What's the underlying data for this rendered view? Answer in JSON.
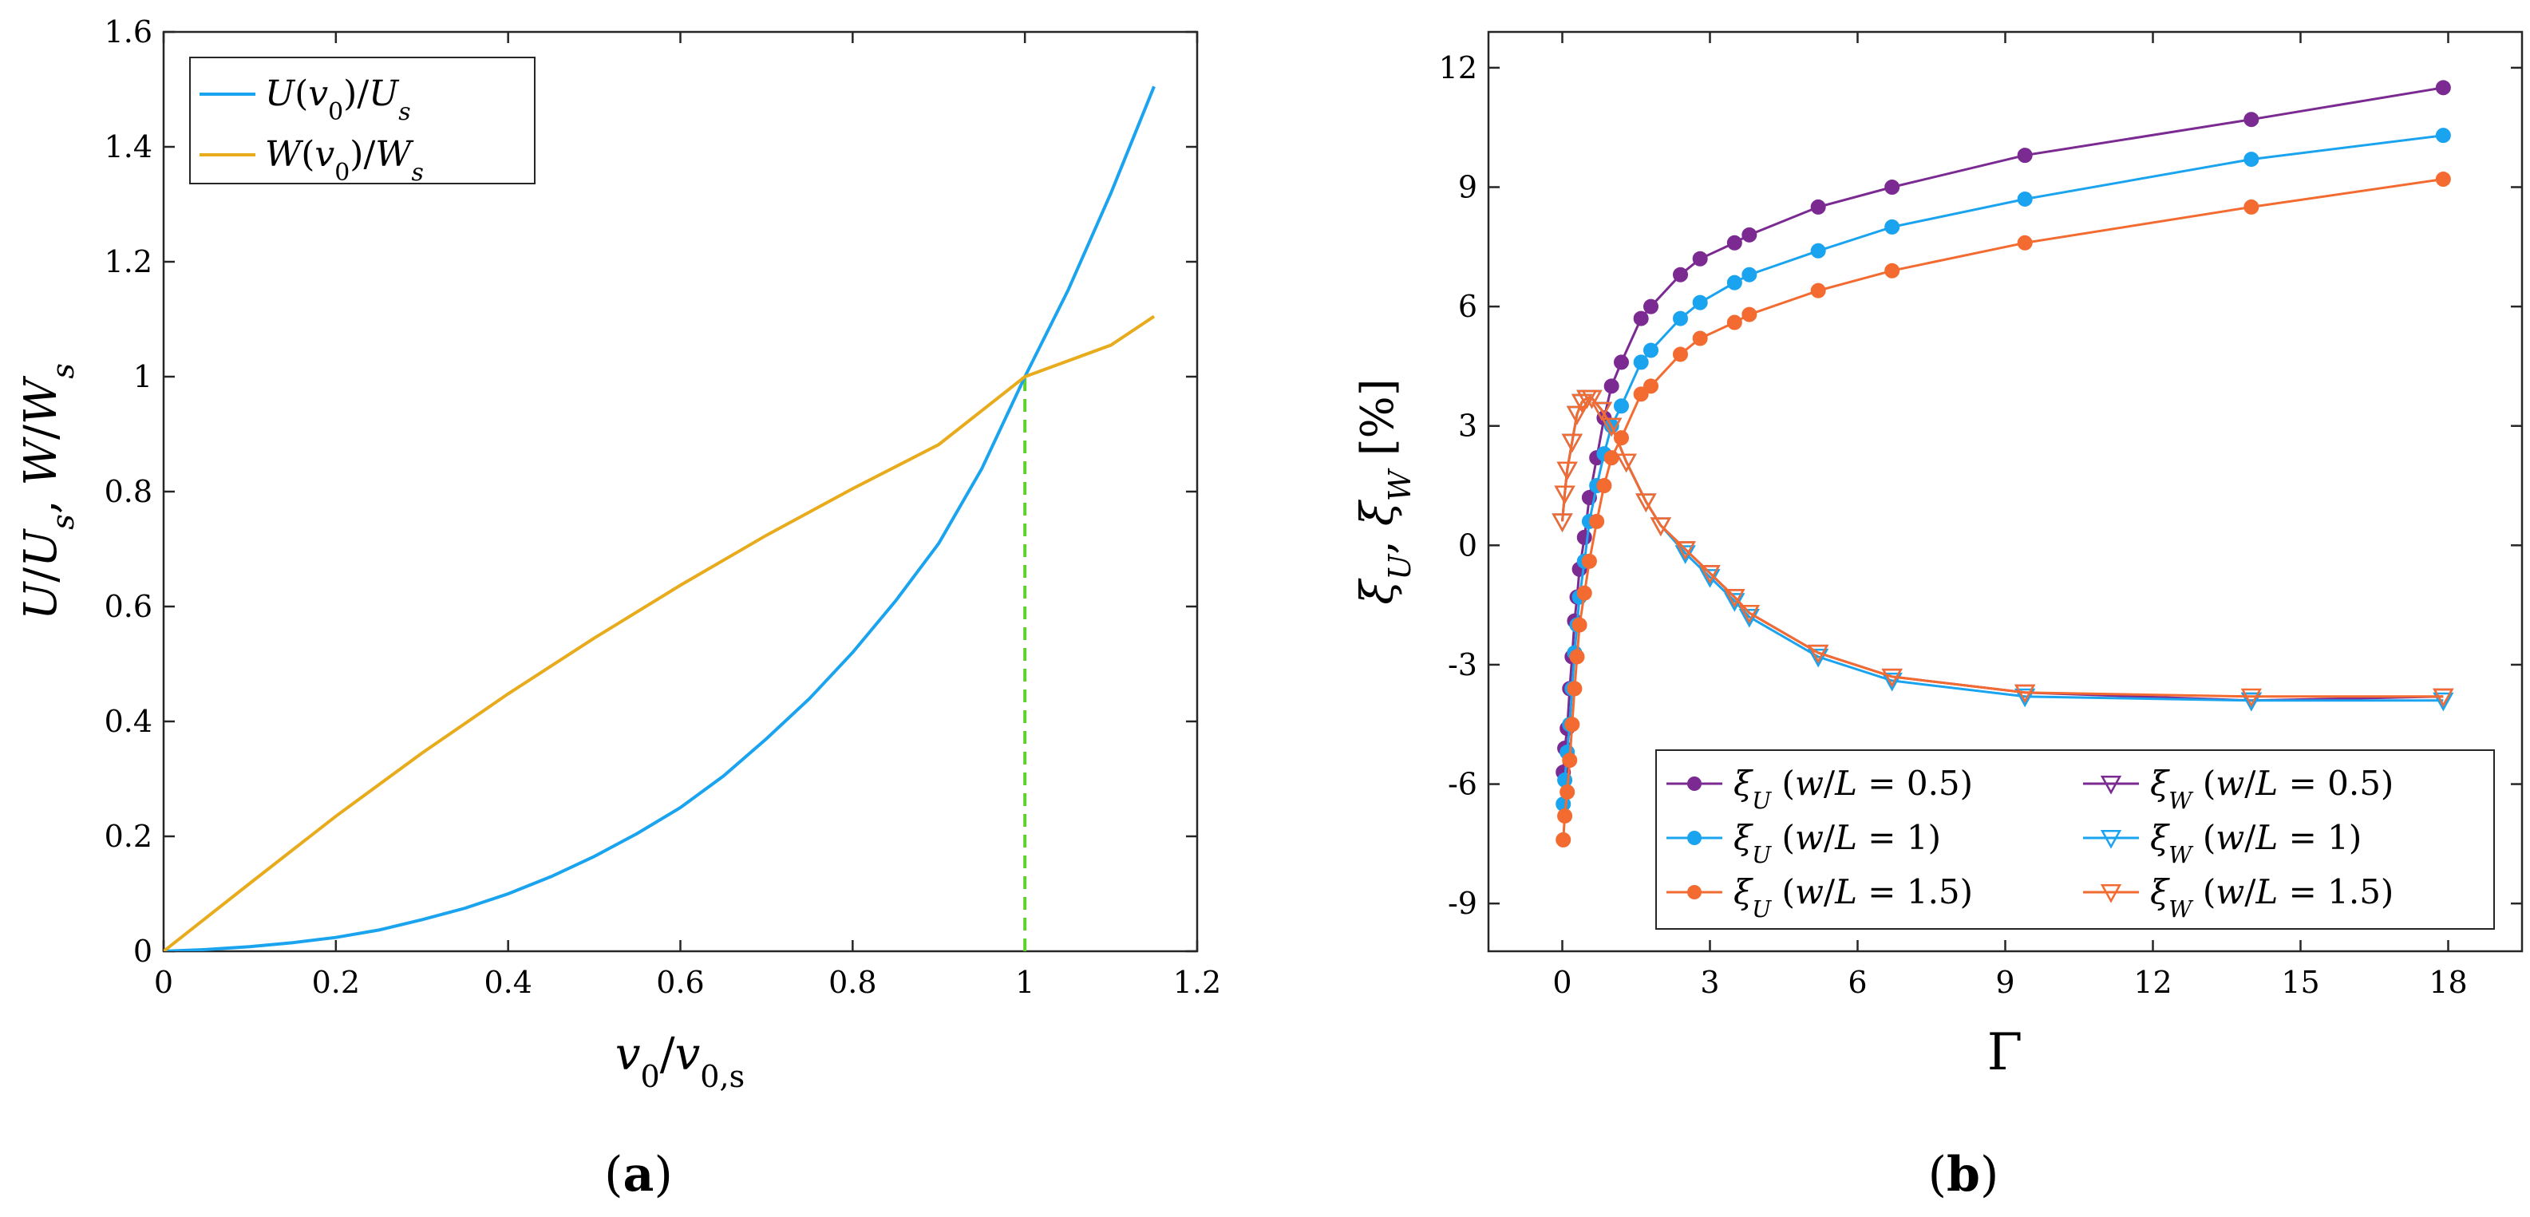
{
  "chart_data": [
    {
      "type": "line",
      "panel_label": "(a)",
      "caption": {
        "open": "(",
        "letter": "a",
        "close": ")"
      },
      "xlabel": "v0/v0,s",
      "ylabel": "U/Us, W/Ws",
      "xlim": [
        0,
        1.2
      ],
      "ylim": [
        0,
        1.6
      ],
      "xticks": [
        0,
        0.2,
        0.4,
        0.6,
        0.8,
        1,
        1.2
      ],
      "xtick_labels": [
        "0",
        "0.2",
        "0.4",
        "0.6",
        "0.8",
        "1",
        "1.2"
      ],
      "yticks": [
        0,
        0.2,
        0.4,
        0.6,
        0.8,
        1,
        1.2,
        1.4,
        1.6
      ],
      "ytick_labels": [
        "0",
        "0.2",
        "0.4",
        "0.6",
        "0.8",
        "1",
        "1.2",
        "1.4",
        "1.6"
      ],
      "legend_position": "top-left",
      "series": [
        {
          "name": "U(v0)/Us",
          "color": "#1aa3ee",
          "x": [
            0,
            0.05,
            0.1,
            0.15,
            0.2,
            0.25,
            0.3,
            0.35,
            0.4,
            0.45,
            0.5,
            0.55,
            0.6,
            0.65,
            0.7,
            0.75,
            0.8,
            0.85,
            0.9,
            0.95,
            1.0,
            1.05,
            1.1,
            1.15
          ],
          "y": [
            0,
            0.003,
            0.008,
            0.015,
            0.024,
            0.037,
            0.055,
            0.075,
            0.1,
            0.13,
            0.165,
            0.205,
            0.25,
            0.305,
            0.37,
            0.44,
            0.52,
            0.61,
            0.71,
            0.84,
            1.0,
            1.15,
            1.32,
            1.505
          ]
        },
        {
          "name": "W(v0)/Ws",
          "color": "#e8ab1c",
          "x": [
            0,
            0.1,
            0.2,
            0.3,
            0.4,
            0.5,
            0.6,
            0.7,
            0.8,
            0.9,
            1.0,
            1.1,
            1.15
          ],
          "y": [
            0,
            0.118,
            0.235,
            0.345,
            0.448,
            0.545,
            0.637,
            0.724,
            0.805,
            0.882,
            1.0,
            1.055,
            1.105
          ]
        }
      ],
      "reference_line": {
        "x": 1.0,
        "y_from": 0,
        "y_to": 1.0,
        "color": "#5fd12e",
        "style": "dashed"
      }
    },
    {
      "type": "line",
      "panel_label": "(b)",
      "caption": {
        "open": "(",
        "letter": "b",
        "close": ")"
      },
      "xlabel": "Γ",
      "ylabel": "ξU, ξW [%]",
      "xlim": [
        -1.5,
        19.5
      ],
      "ylim": [
        -10.2,
        12.9
      ],
      "xticks": [
        0,
        3,
        6,
        9,
        12,
        15,
        18
      ],
      "xtick_labels": [
        "0",
        "3",
        "6",
        "9",
        "12",
        "15",
        "18"
      ],
      "yticks": [
        -9,
        -6,
        -3,
        0,
        3,
        6,
        9,
        12
      ],
      "ytick_labels": [
        "-9",
        "-6",
        "-3",
        "0",
        "3",
        "6",
        "9",
        "12"
      ],
      "legend_position": "bottom-right",
      "series": [
        {
          "name": "ξU (w/L = 0.5)",
          "color": "#7b2a92",
          "marker": "circle",
          "x": [
            0.02,
            0.05,
            0.1,
            0.15,
            0.2,
            0.25,
            0.3,
            0.35,
            0.45,
            0.55,
            0.7,
            0.85,
            1.0,
            1.2,
            1.6,
            1.8,
            2.4,
            2.8,
            3.5,
            3.8,
            5.2,
            6.7,
            9.4,
            14.0,
            17.9
          ],
          "y": [
            -5.7,
            -5.1,
            -4.6,
            -3.6,
            -2.8,
            -1.9,
            -1.3,
            -0.6,
            0.2,
            1.2,
            2.2,
            3.2,
            4.0,
            4.6,
            5.7,
            6.0,
            6.8,
            7.2,
            7.6,
            7.8,
            8.5,
            9.0,
            9.8,
            10.7,
            11.5
          ]
        },
        {
          "name": "ξW (w/L = 0.5)",
          "color": "#7b2a92",
          "marker": "triangle",
          "x": [
            0.0,
            0.05,
            0.1,
            0.2,
            0.3,
            0.4,
            0.5,
            0.6,
            0.8,
            1.0,
            1.3,
            1.7,
            2.0,
            2.5,
            3.0,
            3.5,
            3.8,
            5.2,
            6.7,
            9.4,
            14.0,
            17.9
          ],
          "y": [
            0.6,
            1.3,
            1.9,
            2.6,
            3.3,
            3.6,
            3.7,
            3.7,
            3.4,
            3.0,
            2.1,
            1.1,
            0.5,
            -0.1,
            -0.7,
            -1.3,
            -1.7,
            -2.7,
            -3.3,
            -3.7,
            -3.9,
            -3.8
          ]
        },
        {
          "name": "ξU (w/L = 1)",
          "color": "#1aa3ee",
          "marker": "circle",
          "x": [
            0.02,
            0.05,
            0.1,
            0.15,
            0.2,
            0.25,
            0.3,
            0.35,
            0.45,
            0.55,
            0.7,
            0.85,
            1.0,
            1.2,
            1.6,
            1.8,
            2.4,
            2.8,
            3.5,
            3.8,
            5.2,
            6.7,
            9.4,
            14.0,
            17.9
          ],
          "y": [
            -6.5,
            -5.9,
            -5.2,
            -4.5,
            -3.6,
            -2.7,
            -2.0,
            -1.3,
            -0.4,
            0.6,
            1.5,
            2.3,
            3.0,
            3.5,
            4.6,
            4.9,
            5.7,
            6.1,
            6.6,
            6.8,
            7.4,
            8.0,
            8.7,
            9.7,
            10.3
          ]
        },
        {
          "name": "ξW (w/L = 1)",
          "color": "#1aa3ee",
          "marker": "triangle",
          "x": [
            0.0,
            0.05,
            0.1,
            0.2,
            0.3,
            0.4,
            0.5,
            0.6,
            0.8,
            1.0,
            1.3,
            1.7,
            2.0,
            2.5,
            3.0,
            3.5,
            3.8,
            5.2,
            6.7,
            9.4,
            14.0,
            17.9
          ],
          "y": [
            0.6,
            1.3,
            1.9,
            2.6,
            3.3,
            3.6,
            3.7,
            3.7,
            3.4,
            3.0,
            2.1,
            1.1,
            0.5,
            -0.2,
            -0.8,
            -1.4,
            -1.8,
            -2.8,
            -3.4,
            -3.8,
            -3.9,
            -3.9
          ]
        },
        {
          "name": "ξU (w/L = 1.5)",
          "color": "#f36b30",
          "marker": "circle",
          "x": [
            0.02,
            0.05,
            0.1,
            0.15,
            0.2,
            0.25,
            0.3,
            0.35,
            0.45,
            0.55,
            0.7,
            0.85,
            1.0,
            1.2,
            1.6,
            1.8,
            2.4,
            2.8,
            3.5,
            3.8,
            5.2,
            6.7,
            9.4,
            14.0,
            17.9
          ],
          "y": [
            -7.4,
            -6.8,
            -6.2,
            -5.4,
            -4.5,
            -3.6,
            -2.8,
            -2.0,
            -1.2,
            -0.4,
            0.6,
            1.5,
            2.2,
            2.7,
            3.8,
            4.0,
            4.8,
            5.2,
            5.6,
            5.8,
            6.4,
            6.9,
            7.6,
            8.5,
            9.2
          ]
        },
        {
          "name": "ξW (w/L = 1.5)",
          "color": "#f36b30",
          "marker": "triangle",
          "x": [
            0.0,
            0.05,
            0.1,
            0.2,
            0.3,
            0.4,
            0.5,
            0.6,
            0.8,
            1.0,
            1.3,
            1.7,
            2.0,
            2.5,
            3.0,
            3.5,
            3.8,
            5.2,
            6.7,
            9.4,
            14.0,
            17.9
          ],
          "y": [
            0.6,
            1.3,
            1.9,
            2.6,
            3.3,
            3.6,
            3.7,
            3.7,
            3.4,
            3.0,
            2.1,
            1.1,
            0.5,
            -0.1,
            -0.7,
            -1.3,
            -1.7,
            -2.7,
            -3.3,
            -3.7,
            -3.8,
            -3.8
          ]
        }
      ]
    }
  ]
}
